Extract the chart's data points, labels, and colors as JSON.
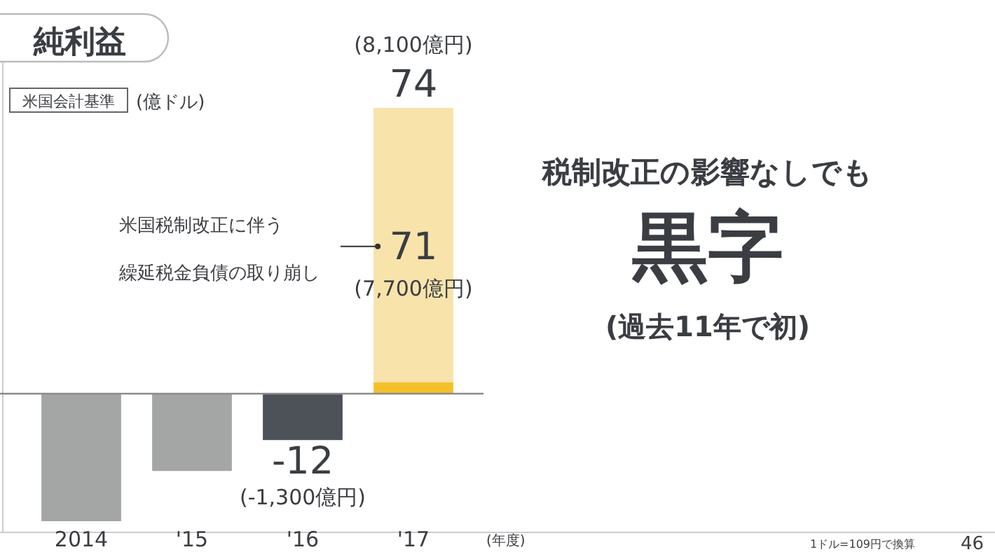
{
  "chart_data": {
    "type": "bar",
    "title": "純利益",
    "ylabel": "(億ドル)",
    "xlabel": "(年度)",
    "categories": [
      "2014",
      "'15",
      "'16",
      "'17"
    ],
    "stacked": true,
    "tick_labels": "x",
    "series": [
      {
        "colors": [
          "#a3a6a5",
          "#a3a6a5",
          "#4d5258",
          "#f5bf2a"
        ],
        "values": [
          -33,
          -20,
          -12,
          3
        ],
        "value_labels": [
          null,
          null,
          "-12",
          null
        ]
      },
      {
        "color": "#f8e3ab",
        "values": [
          null,
          null,
          null,
          71
        ],
        "value_labels": [
          null,
          null,
          null,
          "71"
        ]
      }
    ],
    "totals": [
      null,
      null,
      null,
      "74"
    ],
    "annotations": [
      {
        "text": "(8,100億円)",
        "x": "'17",
        "y": 74
      },
      {
        "text": "(-1,300億円)",
        "x": "'16",
        "y": -12
      },
      "(7,700億円)",
      "米国税制改正に伴う",
      "繰延税金負債の取り崩し",
      "米国会計基準",
      "税制改正の影響なしでも",
      "黒字",
      "(過去11年で初)",
      "1ドル=109円で換算",
      "46"
    ]
  }
}
